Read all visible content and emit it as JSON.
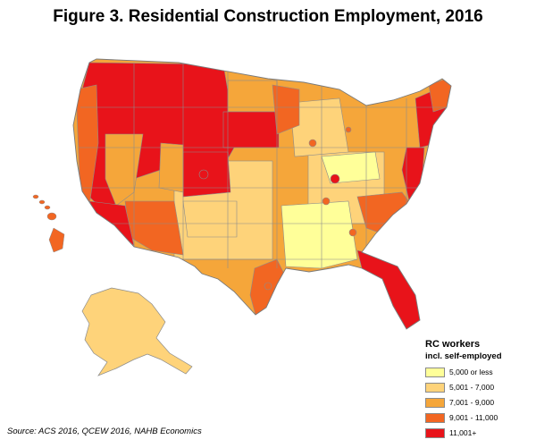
{
  "title": "Figure 3. Residential Construction Employment, 2016",
  "source": "Source: ACS 2016, QCEW 2016, NAHB Economics",
  "legend": {
    "title": "RC workers",
    "subtitle": "incl. self-employed",
    "items": [
      {
        "label": "5,000 or less",
        "color": "#ffff99"
      },
      {
        "label": "5,001 - 7,000",
        "color": "#fed37a"
      },
      {
        "label": "7,001 - 9,000",
        "color": "#f5a63a"
      },
      {
        "label": "9,001 - 11,000",
        "color": "#f26622"
      },
      {
        "label": "11,001+",
        "color": "#e8131a"
      }
    ]
  },
  "colors": {
    "c1": "#ffff99",
    "c2": "#fed37a",
    "c3": "#f5a63a",
    "c4": "#f26622",
    "c5": "#e8131a",
    "boundary": "#8c8c8c"
  }
}
